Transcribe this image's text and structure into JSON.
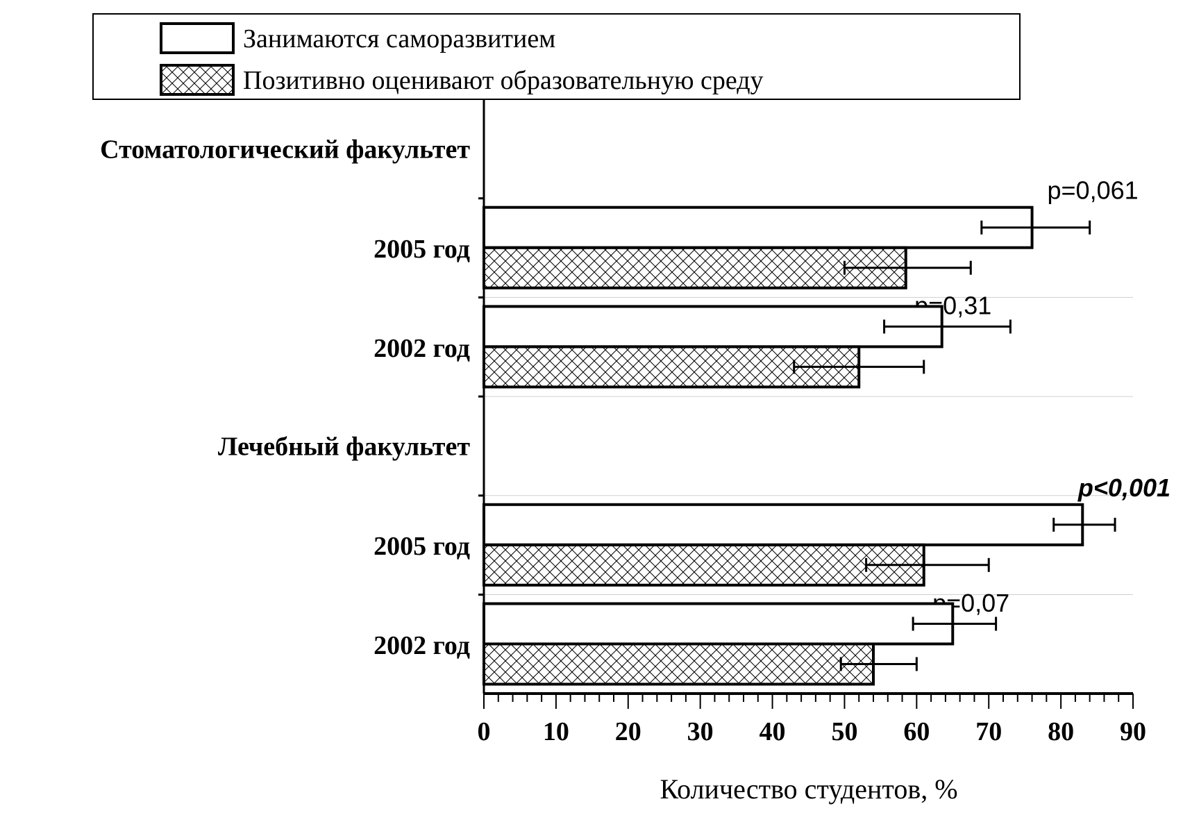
{
  "chart_data": {
    "type": "bar",
    "orientation": "horizontal",
    "xlabel": "Количество студентов, %",
    "xlim": [
      0,
      90
    ],
    "xticks": [
      0,
      10,
      20,
      30,
      40,
      50,
      60,
      70,
      80,
      90
    ],
    "legend": {
      "placement": "top",
      "entries": [
        "Занимаются саморазвитием",
        "Позитивно оценивают образовательную среду"
      ]
    },
    "groups": [
      {
        "title": "Стоматологический факультет",
        "rows": [
          {
            "label": "2005 год",
            "series": [
              {
                "name": "Занимаются саморазвитием",
                "value": 76,
                "err": [
                  69,
                  84
                ],
                "annotation": "p=0,061",
                "bold": false
              },
              {
                "name": "Позитивно оценивают образовательную среду",
                "value": 58.5,
                "err": [
                  50,
                  67.5
                ],
                "annotation": "p=0,31",
                "bold": false
              }
            ]
          },
          {
            "label": "2002 год",
            "series": [
              {
                "name": "Занимаются саморазвитием",
                "value": 63.5,
                "err": [
                  55.5,
                  73
                ]
              },
              {
                "name": "Позитивно оценивают образовательную среду",
                "value": 52,
                "err": [
                  43,
                  61
                ]
              }
            ]
          }
        ]
      },
      {
        "title": "Лечебный факультет",
        "rows": [
          {
            "label": "2005 год",
            "series": [
              {
                "name": "Занимаются саморазвитием",
                "value": 83,
                "err": [
                  79,
                  87.5
                ],
                "annotation": "p<0,001",
                "bold": true
              },
              {
                "name": "Позитивно оценивают образовательную среду",
                "value": 61,
                "err": [
                  53,
                  70
                ],
                "annotation": "p=0,07",
                "bold": false
              }
            ]
          },
          {
            "label": "2002 год",
            "series": [
              {
                "name": "Занимаются саморазвитием",
                "value": 65,
                "err": [
                  59.5,
                  71
                ]
              },
              {
                "name": "Позитивно оценивают образовательную среду",
                "value": 54,
                "err": [
                  49.5,
                  60
                ]
              }
            ]
          }
        ]
      }
    ]
  }
}
